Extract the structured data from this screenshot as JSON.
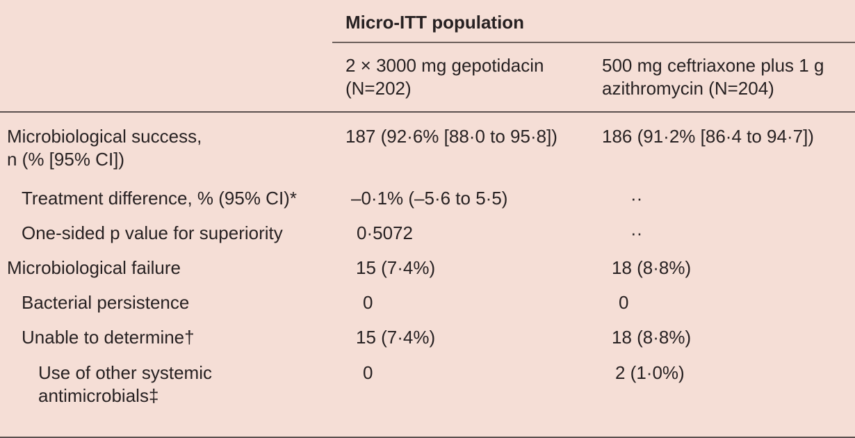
{
  "colors": {
    "background": "#f5ded6",
    "text": "#272122",
    "rule_dark": "#5a504e",
    "rule_light": "#6b5f5b"
  },
  "table": {
    "population_header": "Micro-ITT population",
    "columns": [
      "2 × 3000 mg gepotidacin\n(N=202)",
      "500 mg ceftriaxone plus 1 g\nazithromycin (N=204)"
    ],
    "rows": [
      {
        "label": "Microbiological success,\nn (% [95% CI])",
        "gepotidacin": "187 (92·6% [88·0 to 95·8])",
        "ceftriaxone": "186 (91·2% [86·4 to 94·7])"
      },
      {
        "label": "Treatment difference, % (95% CI)*",
        "gepotidacin": "–0·1% (–5·6 to 5·5)",
        "ceftriaxone": "··"
      },
      {
        "label": "One-sided p value for superiority",
        "gepotidacin": "0·5072",
        "ceftriaxone": "··"
      },
      {
        "label": "Microbiological failure",
        "gepotidacin": "15 (7·4%)",
        "ceftriaxone": "18 (8·8%)"
      },
      {
        "label": "Bacterial persistence",
        "gepotidacin": "0",
        "ceftriaxone": "0"
      },
      {
        "label": "Unable to determine†",
        "gepotidacin": "15 (7·4%)",
        "ceftriaxone": "18 (8·8%)"
      },
      {
        "label": "Use of other systemic\nantimicrobials‡",
        "gepotidacin": "0",
        "ceftriaxone": "2 (1·0%)"
      }
    ]
  }
}
